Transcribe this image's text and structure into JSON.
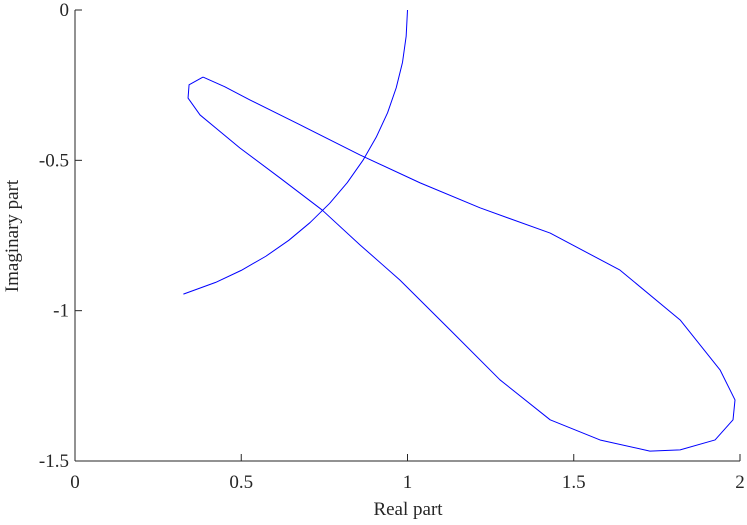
{
  "chart_data": {
    "type": "line",
    "xlabel": "Real part",
    "ylabel": "Imaginary part",
    "xlim": [
      0,
      2
    ],
    "ylim": [
      -1.5,
      0
    ],
    "xticks": [
      0,
      0.5,
      1,
      1.5,
      2
    ],
    "yticks": [
      -1.5,
      -1,
      -0.5,
      0
    ],
    "series": [
      {
        "color": "#0000ff",
        "x": [
          1,
          0.996,
          0.985,
          0.966,
          0.94,
          0.906,
          0.866,
          0.819,
          0.766,
          0.707,
          0.643,
          0.574,
          0.5,
          0.423,
          0.326
        ],
        "values": [
          0,
          -0.087,
          -0.174,
          -0.259,
          -0.342,
          -0.423,
          -0.5,
          -0.574,
          -0.643,
          -0.707,
          -0.766,
          -0.819,
          -0.866,
          -0.906,
          -0.945
        ]
      },
      {
        "color": "#0000ff",
        "x": [
          0.385,
          0.45,
          0.526,
          0.677,
          0.857,
          1.038,
          1.218,
          1.429,
          1.639,
          1.82,
          1.94,
          1.985,
          1.979,
          1.925,
          1.82,
          1.729,
          1.579,
          1.429,
          1.278,
          1.128,
          0.977,
          0.857,
          0.743,
          0.617,
          0.496,
          0.376,
          0.34,
          0.343,
          0.385
        ],
        "values": [
          -0.223,
          -0.255,
          -0.299,
          -0.382,
          -0.482,
          -0.575,
          -0.658,
          -0.742,
          -0.865,
          -1.031,
          -1.197,
          -1.297,
          -1.363,
          -1.43,
          -1.463,
          -1.467,
          -1.43,
          -1.363,
          -1.23,
          -1.064,
          -0.898,
          -0.781,
          -0.665,
          -0.559,
          -0.459,
          -0.349,
          -0.293,
          -0.249,
          -0.223
        ]
      }
    ]
  }
}
